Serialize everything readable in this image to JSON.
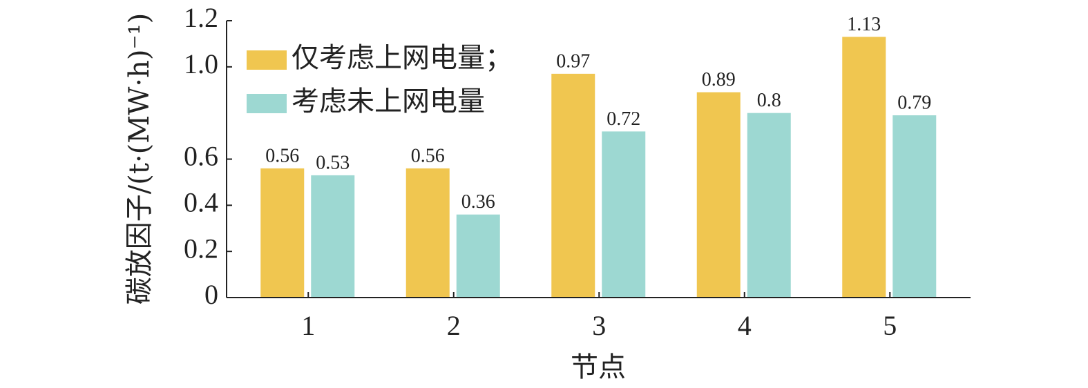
{
  "chart_data": {
    "type": "bar",
    "y_label": "碳放因子/(t·(MW·h)⁻¹)",
    "x_label": "节点",
    "categories": [
      "1",
      "2",
      "3",
      "4",
      "5"
    ],
    "series": [
      {
        "name": "仅考虑上网电量；",
        "color": "#f0c650",
        "values": [
          0.56,
          0.56,
          0.97,
          0.89,
          1.13
        ]
      },
      {
        "name": "考虑未上网电量",
        "color": "#9dd8d2",
        "values": [
          0.53,
          0.36,
          0.72,
          0.8,
          0.79
        ]
      }
    ],
    "ylim": [
      0,
      1.2
    ],
    "yticks": [
      0,
      0.2,
      0.4,
      0.6,
      {
        "value": 1,
        "label": "1.0"
      },
      1.2
    ],
    "legend": "upper left"
  }
}
